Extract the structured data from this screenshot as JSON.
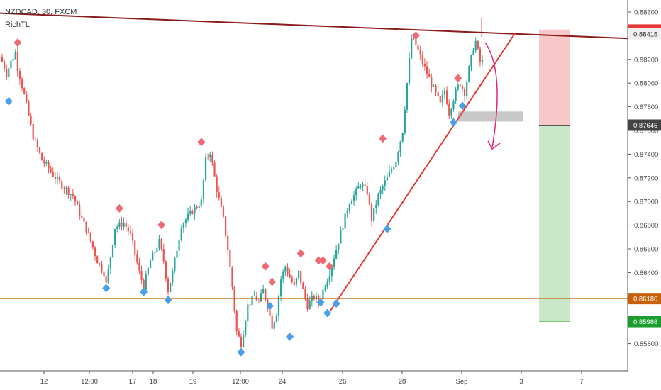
{
  "header": {
    "symbol_line": "NZDCAD, 30, FXCM",
    "indicator": "RichTL"
  },
  "colors": {
    "up": "#26a69a",
    "down": "#ef5350",
    "resistance": "#8b1a1a",
    "support": "#c8600a",
    "trend": "#e53935",
    "pivot_high": "#ef6b73",
    "pivot_low": "#4a9fe8",
    "stop_zone": "#f8c8c8",
    "target_zone": "#c8e8c8",
    "gray_box": "#c8c8c8",
    "arrow": "#e91e7b"
  },
  "chart_data": {
    "type": "candlestick",
    "title": "",
    "xlabel": "",
    "ylabel": "",
    "ylim": [
      0.8568,
      0.8866
    ],
    "grid": false,
    "y_ticks": [
      "0.88600",
      "0.88400",
      "0.88200",
      "0.88000",
      "0.87800",
      "0.87600",
      "0.87400",
      "0.87200",
      "0.87000",
      "0.86800",
      "0.86600",
      "0.86400",
      "0.86200",
      "0.86000",
      "0.85800"
    ],
    "x_ticks": [
      "12",
      "12:00",
      "17",
      "18",
      "19",
      "12:00",
      "24",
      "26",
      "28",
      "Sep",
      "3",
      "7"
    ],
    "price_labels": [
      {
        "text": "0.88448",
        "value": 0.88448,
        "color": "#e53935"
      },
      {
        "text": "0.88415",
        "value": 0.88415,
        "color": "#f0f0f0"
      },
      {
        "text": "0.87645",
        "value": 0.87645,
        "color": "#444444"
      },
      {
        "text": "0.86180",
        "value": 0.8618,
        "color": "#c8600a"
      },
      {
        "text": "0.85986",
        "value": 0.85986,
        "color": "#1b9e2f"
      }
    ],
    "levels": {
      "support": 0.8618,
      "resistance_start": 0.8859,
      "resistance_end": 0.8841,
      "entry": 0.87645,
      "stop": 0.88448,
      "target": 0.85986,
      "gray_box": [
        0.87675,
        0.8776
      ]
    },
    "path_anchors": [
      [
        0,
        0.8822
      ],
      [
        1,
        0.8818
      ],
      [
        3,
        0.8808
      ],
      [
        5,
        0.8818
      ],
      [
        7,
        0.8826
      ],
      [
        8,
        0.8813
      ],
      [
        11,
        0.879
      ],
      [
        15,
        0.8755
      ],
      [
        19,
        0.8735
      ],
      [
        22,
        0.8728
      ],
      [
        25,
        0.872
      ],
      [
        29,
        0.8712
      ],
      [
        33,
        0.8705
      ],
      [
        36,
        0.869
      ],
      [
        40,
        0.8672
      ],
      [
        44,
        0.865
      ],
      [
        47,
        0.864
      ],
      [
        48,
        0.863
      ],
      [
        52,
        0.8678
      ],
      [
        56,
        0.8682
      ],
      [
        59,
        0.8672
      ],
      [
        63,
        0.864
      ],
      [
        65,
        0.8628
      ],
      [
        68,
        0.865
      ],
      [
        72,
        0.8666
      ],
      [
        74,
        0.865
      ],
      [
        76,
        0.8625
      ],
      [
        78,
        0.864
      ],
      [
        82,
        0.868
      ],
      [
        87,
        0.8692
      ],
      [
        91,
        0.87
      ],
      [
        93,
        0.8735
      ],
      [
        95,
        0.8742
      ],
      [
        98,
        0.871
      ],
      [
        101,
        0.8685
      ],
      [
        103,
        0.866
      ],
      [
        105,
        0.8628
      ],
      [
        107,
        0.859
      ],
      [
        109,
        0.858
      ],
      [
        112,
        0.8612
      ],
      [
        115,
        0.862
      ],
      [
        117,
        0.8615
      ],
      [
        119,
        0.8625
      ],
      [
        121,
        0.8612
      ],
      [
        123,
        0.8595
      ],
      [
        125,
        0.8606
      ],
      [
        127,
        0.8635
      ],
      [
        129,
        0.8645
      ],
      [
        131,
        0.8636
      ],
      [
        133,
        0.8628
      ],
      [
        135,
        0.864
      ],
      [
        137,
        0.8625
      ],
      [
        139,
        0.8612
      ],
      [
        142,
        0.862
      ],
      [
        144,
        0.8615
      ],
      [
        146,
        0.8625
      ],
      [
        149,
        0.864
      ],
      [
        152,
        0.866
      ],
      [
        155,
        0.868
      ],
      [
        158,
        0.87
      ],
      [
        160,
        0.8705
      ],
      [
        163,
        0.8715
      ],
      [
        166,
        0.8708
      ],
      [
        168,
        0.8685
      ],
      [
        171,
        0.8705
      ],
      [
        175,
        0.872
      ],
      [
        179,
        0.8735
      ],
      [
        182,
        0.876
      ],
      [
        184,
        0.88
      ],
      [
        186,
        0.8838
      ],
      [
        188,
        0.8832
      ],
      [
        190,
        0.8822
      ],
      [
        193,
        0.8808
      ],
      [
        196,
        0.8795
      ],
      [
        199,
        0.8782
      ],
      [
        201,
        0.8794
      ],
      [
        203,
        0.8775
      ],
      [
        205,
        0.8787
      ],
      [
        207,
        0.8797
      ],
      [
        208,
        0.88
      ],
      [
        210,
        0.8792
      ],
      [
        212,
        0.8812
      ],
      [
        214,
        0.883
      ],
      [
        215,
        0.8835
      ],
      [
        217,
        0.8818
      ]
    ],
    "pivot_highs": [
      {
        "i": 7,
        "value": 0.883
      },
      {
        "i": 53,
        "value": 0.869
      },
      {
        "i": 72,
        "value": 0.8676
      },
      {
        "i": 90,
        "value": 0.8746
      },
      {
        "i": 119,
        "value": 0.8641
      },
      {
        "i": 122,
        "value": 0.8628
      },
      {
        "i": 135,
        "value": 0.8652
      },
      {
        "i": 143,
        "value": 0.8646
      },
      {
        "i": 145,
        "value": 0.8646
      },
      {
        "i": 148,
        "value": 0.8641
      },
      {
        "i": 172,
        "value": 0.8749
      },
      {
        "i": 187,
        "value": 0.8836
      },
      {
        "i": 206,
        "value": 0.88
      }
    ],
    "pivot_lows": [
      {
        "i": 3,
        "value": 0.8789
      },
      {
        "i": 47,
        "value": 0.8631
      },
      {
        "i": 64,
        "value": 0.8628
      },
      {
        "i": 75,
        "value": 0.8621
      },
      {
        "i": 108,
        "value": 0.8577
      },
      {
        "i": 121,
        "value": 0.8616
      },
      {
        "i": 130,
        "value": 0.859
      },
      {
        "i": 144,
        "value": 0.8619
      },
      {
        "i": 147,
        "value": 0.861
      },
      {
        "i": 151,
        "value": 0.8618
      },
      {
        "i": 174,
        "value": 0.8681
      },
      {
        "i": 204,
        "value": 0.8771
      },
      {
        "i": 208,
        "value": 0.8785
      }
    ]
  }
}
